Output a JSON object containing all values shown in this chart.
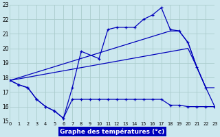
{
  "title": "Graphe des températures (°c)",
  "bg_color": "#cce8ee",
  "grid_color": "#aacccc",
  "line_color": "#0000bb",
  "xlim": [
    0,
    23
  ],
  "ylim": [
    15,
    23
  ],
  "xtick_vals": [
    0,
    1,
    2,
    3,
    4,
    5,
    6,
    7,
    8,
    9,
    10,
    11,
    12,
    13,
    14,
    15,
    16,
    17,
    18,
    19,
    20,
    21,
    22,
    23
  ],
  "ytick_vals": [
    15,
    16,
    17,
    18,
    19,
    20,
    21,
    22,
    23
  ],
  "line1_x": [
    0,
    1,
    2,
    3,
    4,
    5,
    6,
    7,
    8,
    10,
    11,
    12,
    13,
    14,
    15,
    16,
    17,
    18,
    19,
    20,
    21,
    22
  ],
  "line1_y": [
    17.8,
    17.5,
    17.3,
    16.5,
    16.0,
    15.7,
    15.2,
    17.3,
    19.8,
    19.3,
    21.3,
    21.45,
    21.45,
    21.45,
    22.0,
    22.3,
    22.8,
    21.3,
    21.2,
    20.4,
    18.7,
    17.3
  ],
  "line2_x": [
    0,
    1,
    2,
    3,
    4,
    5,
    6,
    7,
    8,
    9,
    10,
    11,
    12,
    13,
    14,
    15,
    16,
    17,
    18,
    19,
    20,
    21,
    22,
    23
  ],
  "line2_y": [
    17.8,
    17.5,
    17.3,
    16.5,
    16.0,
    15.7,
    15.2,
    16.5,
    16.5,
    16.5,
    16.5,
    16.5,
    16.5,
    16.5,
    16.5,
    16.5,
    16.5,
    16.5,
    16.1,
    16.1,
    16.0,
    16.0,
    16.0,
    16.0
  ],
  "line3_x": [
    0,
    18,
    19,
    20,
    21,
    22,
    23
  ],
  "line3_y": [
    17.8,
    21.2,
    21.2,
    20.4,
    18.7,
    17.3,
    17.3
  ],
  "line4_x": [
    0,
    20,
    21,
    22,
    23
  ],
  "line4_y": [
    17.8,
    20.0,
    18.7,
    17.3,
    16.0
  ]
}
